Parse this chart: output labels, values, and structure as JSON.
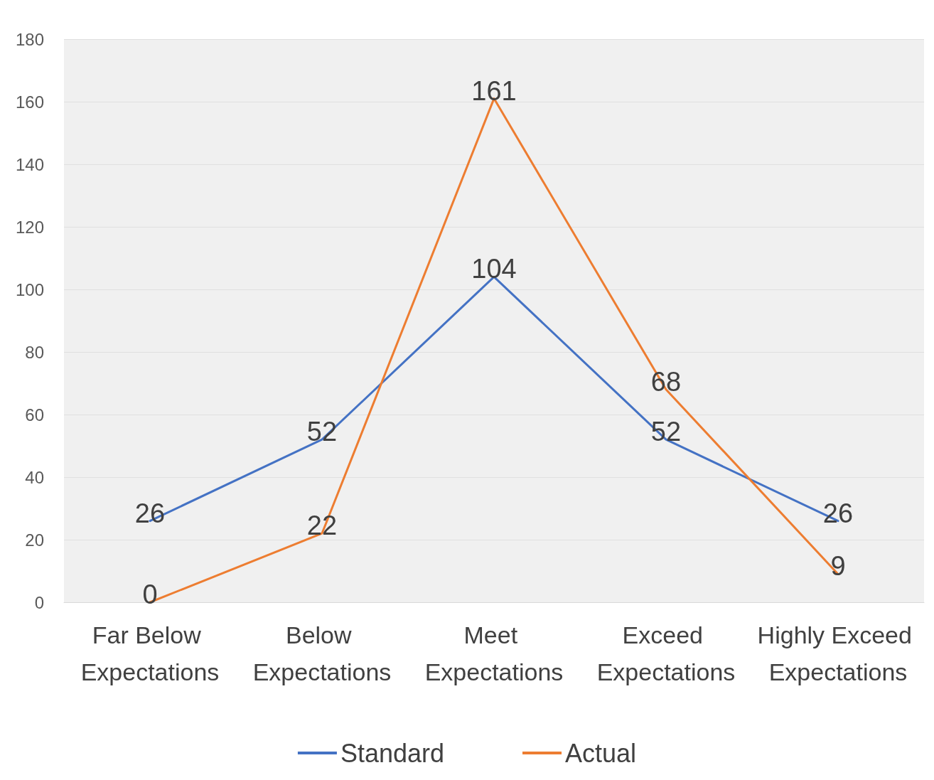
{
  "chart_data": {
    "type": "line",
    "categories": [
      "Far Below Expectations",
      "Below Expectations",
      "Meet Expectations",
      "Exceed Expectations",
      "Highly Exceed Expectations"
    ],
    "series": [
      {
        "name": "Standard",
        "color": "#4472c4",
        "values": [
          26,
          52,
          104,
          52,
          26
        ]
      },
      {
        "name": "Actual",
        "color": "#ed7d31",
        "values": [
          0,
          22,
          161,
          68,
          9
        ]
      }
    ],
    "ylim": [
      0,
      180
    ],
    "yticks": [
      0,
      20,
      40,
      60,
      80,
      100,
      120,
      140,
      160,
      180
    ],
    "grid": "y",
    "legend": "bottom",
    "data_labels": true,
    "marker": "none",
    "line_style": "solid"
  }
}
